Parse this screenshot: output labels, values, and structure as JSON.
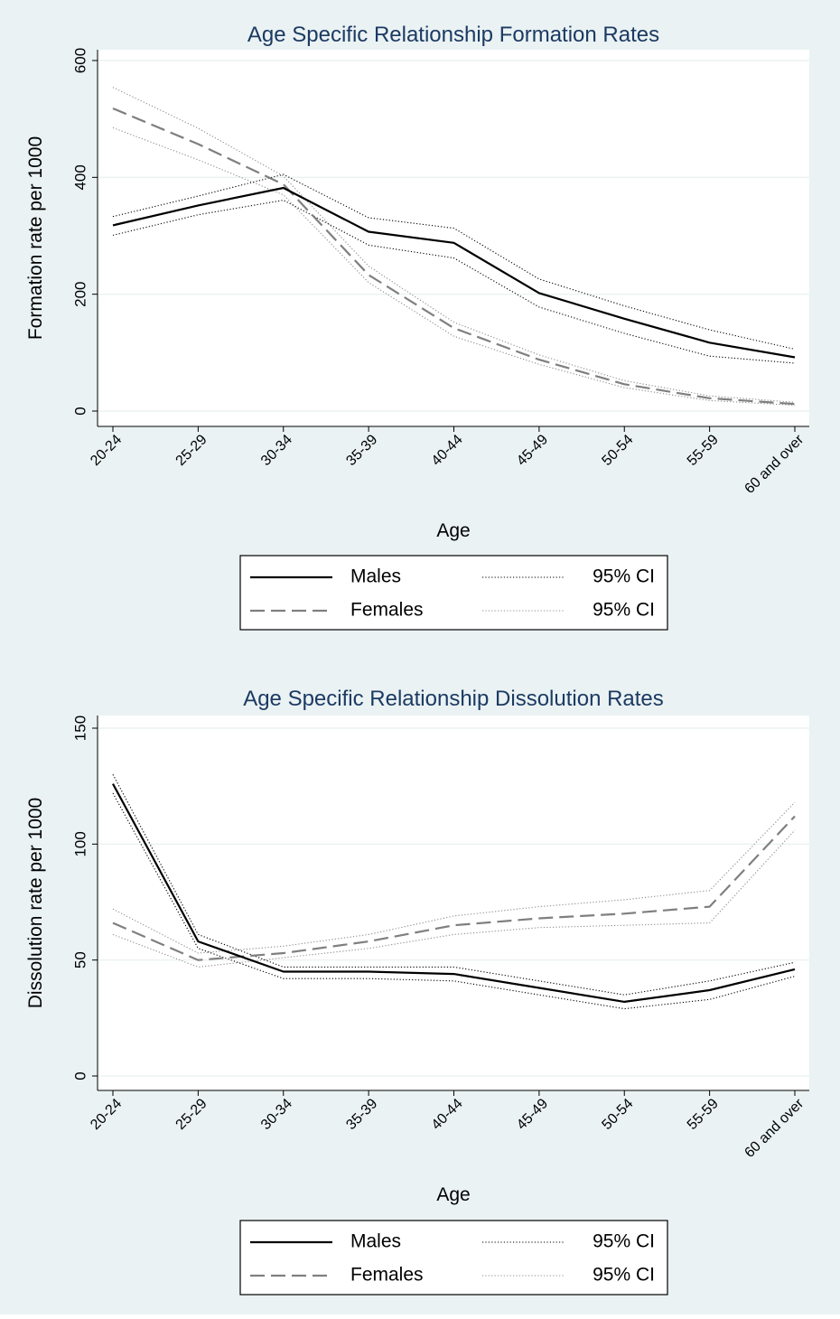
{
  "chart_data": [
    {
      "type": "line",
      "title": "Age Specific Relationship Formation Rates",
      "xlabel": "Age",
      "ylabel": "Formation rate per 1000",
      "categories": [
        "20-24",
        "25-29",
        "30-34",
        "35-39",
        "40-44",
        "45-49",
        "50-54",
        "55-59",
        "60 and over"
      ],
      "yticks": [
        "0",
        "200",
        "400",
        "600"
      ],
      "ylim": [
        0,
        600
      ],
      "grid": true,
      "legend_position": "bottom",
      "legend": [
        {
          "label": "Males",
          "style": "solid"
        },
        {
          "label": "95% CI",
          "style": "dotted-dark"
        },
        {
          "label": "Females",
          "style": "dashed"
        },
        {
          "label": "95% CI",
          "style": "dotted-light"
        }
      ],
      "series": [
        {
          "name": "Males",
          "values": [
            318,
            352,
            382,
            307,
            288,
            202,
            158,
            117,
            92
          ]
        },
        {
          "name": "95% CI",
          "values": [
            333,
            368,
            405,
            331,
            313,
            226,
            180,
            139,
            106
          ]
        },
        {
          "name": "95% CI",
          "values": [
            301,
            336,
            361,
            284,
            262,
            178,
            133,
            94,
            82
          ]
        },
        {
          "name": "Females",
          "values": [
            518,
            457,
            388,
            233,
            142,
            88,
            46,
            22,
            12
          ]
        },
        {
          "name": "95% CI",
          "values": [
            554,
            484,
            402,
            248,
            152,
            96,
            52,
            26,
            15
          ]
        },
        {
          "name": "95% CI",
          "values": [
            485,
            430,
            370,
            220,
            128,
            80,
            40,
            18,
            10
          ]
        }
      ],
      "colors": {
        "males": "#000000",
        "males_ci": "#000000",
        "females": "#7f7f7f",
        "females_ci": "#8c8c8c"
      }
    },
    {
      "type": "line",
      "title": "Age Specific Relationship Dissolution Rates",
      "xlabel": "Age",
      "ylabel": "Dissolution rate per 1000",
      "categories": [
        "20-24",
        "25-29",
        "30-34",
        "35-39",
        "40-44",
        "45-49",
        "50-54",
        "55-59",
        "60 and over"
      ],
      "yticks": [
        "0",
        "50",
        "100",
        "150"
      ],
      "ylim": [
        0,
        150
      ],
      "grid": true,
      "legend_position": "bottom",
      "legend": [
        {
          "label": "Males",
          "style": "solid"
        },
        {
          "label": "95% CI",
          "style": "dotted-dark"
        },
        {
          "label": "Females",
          "style": "dashed"
        },
        {
          "label": "95% CI",
          "style": "dotted-light"
        }
      ],
      "series": [
        {
          "name": "Males",
          "values": [
            126,
            58,
            45,
            45,
            44,
            38,
            32,
            37,
            46
          ]
        },
        {
          "name": "95% CI",
          "values": [
            130,
            61,
            47,
            47,
            47,
            41,
            35,
            41,
            49
          ]
        },
        {
          "name": "95% CI",
          "values": [
            122,
            55,
            42,
            42,
            41,
            35,
            29,
            33,
            43
          ]
        },
        {
          "name": "Females",
          "values": [
            66,
            50,
            53,
            58,
            65,
            68,
            70,
            73,
            112
          ]
        },
        {
          "name": "95% CI",
          "values": [
            72,
            53,
            56,
            61,
            69,
            73,
            76,
            80,
            118
          ]
        },
        {
          "name": "95% CI",
          "values": [
            61,
            47,
            51,
            55,
            61,
            64,
            65,
            66,
            106
          ]
        }
      ],
      "colors": {
        "males": "#000000",
        "males_ci": "#000000",
        "females": "#7f7f7f",
        "females_ci": "#8c8c8c"
      }
    }
  ]
}
